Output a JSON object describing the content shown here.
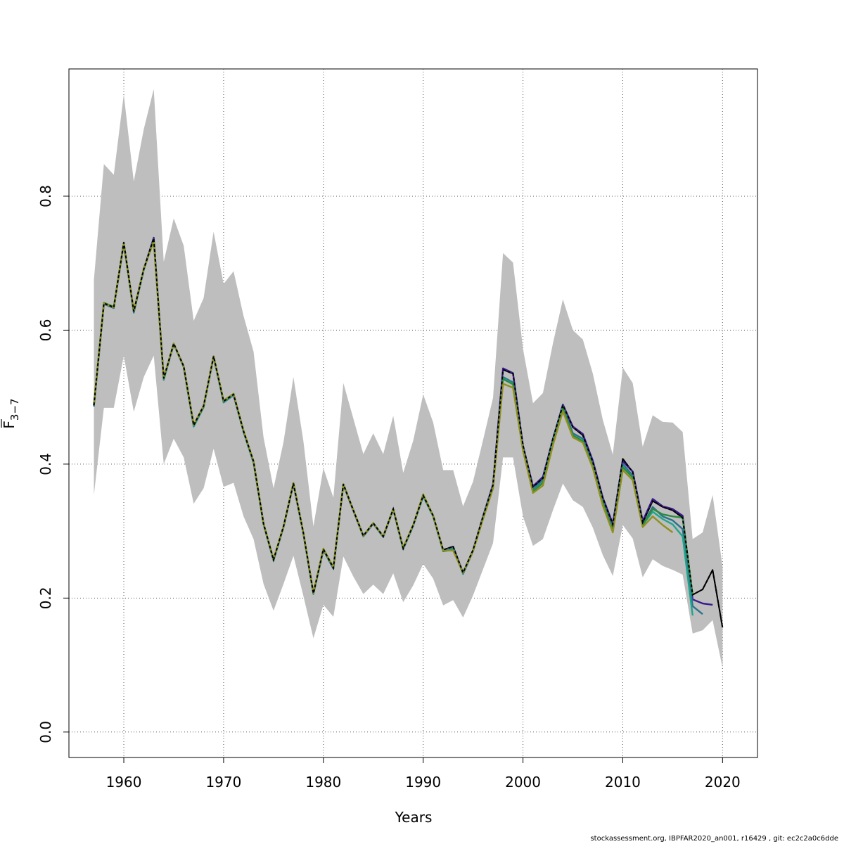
{
  "chart_data": {
    "type": "line",
    "title": "",
    "xlabel": "Years",
    "ylabel_main": "F",
    "ylabel_sub": "3−7",
    "xlim": [
      1954.5,
      2023.5
    ],
    "ylim": [
      -0.038,
      0.99
    ],
    "xticks": [
      1960,
      1970,
      1980,
      1990,
      2000,
      2010,
      2020
    ],
    "yticks": [
      0.0,
      0.2,
      0.4,
      0.6,
      0.8
    ],
    "ytick_labels": [
      "0.0",
      "0.2",
      "0.4",
      "0.6",
      "0.8"
    ],
    "grid": true,
    "legend": "none",
    "band_color": "#bebebe",
    "confidence_band": {
      "x": [
        1957,
        1958,
        1959,
        1960,
        1961,
        1962,
        1963,
        1964,
        1965,
        1966,
        1967,
        1968,
        1969,
        1970,
        1971,
        1972,
        1973,
        1974,
        1975,
        1976,
        1977,
        1978,
        1979,
        1980,
        1981,
        1982,
        1983,
        1984,
        1985,
        1986,
        1987,
        1988,
        1989,
        1990,
        1991,
        1992,
        1993,
        1994,
        1995,
        1996,
        1997,
        1998,
        1999,
        2000,
        2001,
        2002,
        2003,
        2004,
        2005,
        2006,
        2007,
        2008,
        2009,
        2010,
        2011,
        2012,
        2013,
        2014,
        2015,
        2016,
        2017,
        2018,
        2019,
        2020
      ],
      "upper": [
        0.675,
        0.848,
        0.832,
        0.952,
        0.822,
        0.9,
        0.96,
        0.702,
        0.767,
        0.726,
        0.614,
        0.648,
        0.747,
        0.669,
        0.688,
        0.621,
        0.568,
        0.44,
        0.364,
        0.433,
        0.53,
        0.434,
        0.307,
        0.394,
        0.35,
        0.521,
        0.468,
        0.415,
        0.446,
        0.415,
        0.472,
        0.387,
        0.435,
        0.504,
        0.462,
        0.391,
        0.391,
        0.337,
        0.374,
        0.436,
        0.499,
        0.715,
        0.701,
        0.572,
        0.491,
        0.506,
        0.58,
        0.646,
        0.6,
        0.586,
        0.535,
        0.466,
        0.414,
        0.544,
        0.521,
        0.426,
        0.473,
        0.463,
        0.462,
        0.448,
        0.288,
        0.298,
        0.354,
        0.247
      ],
      "lower": [
        0.354,
        0.484,
        0.484,
        0.562,
        0.478,
        0.53,
        0.562,
        0.4,
        0.438,
        0.41,
        0.341,
        0.364,
        0.423,
        0.366,
        0.372,
        0.322,
        0.288,
        0.221,
        0.181,
        0.221,
        0.263,
        0.203,
        0.14,
        0.19,
        0.172,
        0.262,
        0.232,
        0.206,
        0.22,
        0.206,
        0.237,
        0.194,
        0.219,
        0.251,
        0.229,
        0.189,
        0.197,
        0.171,
        0.204,
        0.243,
        0.282,
        0.41,
        0.41,
        0.322,
        0.278,
        0.288,
        0.331,
        0.371,
        0.346,
        0.336,
        0.305,
        0.264,
        0.233,
        0.309,
        0.289,
        0.231,
        0.258,
        0.248,
        0.242,
        0.235,
        0.147,
        0.152,
        0.167,
        0.096
      ]
    },
    "series": [
      {
        "color": "#000000",
        "dashed": true,
        "x": [
          1957,
          1958,
          1959,
          1960,
          1961,
          1962,
          1963,
          1964,
          1965,
          1966,
          1967,
          1968,
          1969,
          1970,
          1971,
          1972,
          1973,
          1974,
          1975,
          1976,
          1977,
          1978,
          1979,
          1980,
          1981,
          1982,
          1983,
          1984,
          1985,
          1986,
          1987,
          1988,
          1989,
          1990,
          1991,
          1992,
          1993,
          1994,
          1995,
          1996,
          1997,
          1998,
          1999,
          2000,
          2001,
          2002,
          2003,
          2004,
          2005,
          2006,
          2007,
          2008,
          2009,
          2010,
          2011,
          2012,
          2013,
          2014,
          2015,
          2016,
          2017,
          2018,
          2019,
          2020
        ],
        "y": [
          0.488,
          0.64,
          0.634,
          0.731,
          0.628,
          0.691,
          0.737,
          0.528,
          0.58,
          0.546,
          0.458,
          0.487,
          0.561,
          0.494,
          0.504,
          0.449,
          0.404,
          0.311,
          0.257,
          0.307,
          0.371,
          0.297,
          0.207,
          0.273,
          0.245,
          0.37,
          0.331,
          0.293,
          0.312,
          0.292,
          0.333,
          0.274,
          0.309,
          0.353,
          0.323,
          0.272,
          0.277,
          0.238,
          0.272,
          0.322,
          0.369,
          0.541,
          0.535,
          0.428,
          0.366,
          0.379,
          0.438,
          0.488,
          0.455,
          0.443,
          0.403,
          0.349,
          0.31,
          0.408,
          0.388,
          0.313,
          0.345,
          0.336,
          0.331,
          0.32,
          0.205,
          0.213,
          0.242,
          0.156
        ]
      },
      {
        "color": "#3b1c8c",
        "dashed": false,
        "x": [
          1957,
          1958,
          1959,
          1960,
          1961,
          1962,
          1963,
          1964,
          1965,
          1966,
          1967,
          1968,
          1969,
          1970,
          1971,
          1972,
          1973,
          1974,
          1975,
          1976,
          1977,
          1978,
          1979,
          1980,
          1981,
          1982,
          1983,
          1984,
          1985,
          1986,
          1987,
          1988,
          1989,
          1990,
          1991,
          1992,
          1993,
          1994,
          1995,
          1996,
          1997,
          1998,
          1999,
          2000,
          2001,
          2002,
          2003,
          2004,
          2005,
          2006,
          2007,
          2008,
          2009,
          2010,
          2011,
          2012,
          2013,
          2014,
          2015,
          2016,
          2017,
          2018,
          2019
        ],
        "y": [
          0.487,
          0.64,
          0.634,
          0.73,
          0.627,
          0.691,
          0.738,
          0.527,
          0.58,
          0.545,
          0.457,
          0.486,
          0.561,
          0.493,
          0.503,
          0.449,
          0.403,
          0.311,
          0.257,
          0.306,
          0.371,
          0.296,
          0.207,
          0.272,
          0.244,
          0.37,
          0.331,
          0.293,
          0.312,
          0.292,
          0.333,
          0.274,
          0.308,
          0.353,
          0.322,
          0.271,
          0.276,
          0.237,
          0.271,
          0.322,
          0.37,
          0.543,
          0.536,
          0.427,
          0.367,
          0.381,
          0.437,
          0.489,
          0.456,
          0.445,
          0.405,
          0.35,
          0.311,
          0.404,
          0.389,
          0.315,
          0.348,
          0.337,
          0.333,
          0.323,
          0.198,
          0.192,
          0.19
        ]
      },
      {
        "color": "#2c728e",
        "dashed": false,
        "x": [
          1957,
          1958,
          1959,
          1960,
          1961,
          1962,
          1963,
          1964,
          1965,
          1966,
          1967,
          1968,
          1969,
          1970,
          1971,
          1972,
          1973,
          1974,
          1975,
          1976,
          1977,
          1978,
          1979,
          1980,
          1981,
          1982,
          1983,
          1984,
          1985,
          1986,
          1987,
          1988,
          1989,
          1990,
          1991,
          1992,
          1993,
          1994,
          1995,
          1996,
          1997,
          1998,
          1999,
          2000,
          2001,
          2002,
          2003,
          2004,
          2005,
          2006,
          2007,
          2008,
          2009,
          2010,
          2011,
          2012,
          2013,
          2014,
          2015,
          2016,
          2017,
          2018
        ],
        "y": [
          0.486,
          0.639,
          0.633,
          0.729,
          0.626,
          0.69,
          0.735,
          0.526,
          0.579,
          0.545,
          0.456,
          0.485,
          0.56,
          0.492,
          0.503,
          0.448,
          0.402,
          0.31,
          0.256,
          0.306,
          0.37,
          0.296,
          0.206,
          0.272,
          0.244,
          0.369,
          0.33,
          0.292,
          0.311,
          0.291,
          0.332,
          0.273,
          0.308,
          0.352,
          0.322,
          0.27,
          0.275,
          0.236,
          0.27,
          0.321,
          0.368,
          0.53,
          0.522,
          0.425,
          0.362,
          0.377,
          0.435,
          0.487,
          0.446,
          0.438,
          0.4,
          0.345,
          0.304,
          0.4,
          0.383,
          0.309,
          0.336,
          0.322,
          0.316,
          0.303,
          0.188,
          0.176
        ]
      },
      {
        "color": "#1ea58e",
        "dashed": false,
        "x": [
          1957,
          1958,
          1959,
          1960,
          1961,
          1962,
          1963,
          1964,
          1965,
          1966,
          1967,
          1968,
          1969,
          1970,
          1971,
          1972,
          1973,
          1974,
          1975,
          1976,
          1977,
          1978,
          1979,
          1980,
          1981,
          1982,
          1983,
          1984,
          1985,
          1986,
          1987,
          1988,
          1989,
          1990,
          1991,
          1992,
          1993,
          1994,
          1995,
          1996,
          1997,
          1998,
          1999,
          2000,
          2001,
          2002,
          2003,
          2004,
          2005,
          2006,
          2007,
          2008,
          2009,
          2010,
          2011,
          2012,
          2013,
          2014,
          2015,
          2016,
          2017
        ],
        "y": [
          0.488,
          0.64,
          0.634,
          0.73,
          0.628,
          0.691,
          0.735,
          0.527,
          0.58,
          0.545,
          0.457,
          0.486,
          0.56,
          0.493,
          0.504,
          0.449,
          0.403,
          0.31,
          0.257,
          0.306,
          0.372,
          0.296,
          0.207,
          0.273,
          0.245,
          0.37,
          0.331,
          0.293,
          0.312,
          0.292,
          0.333,
          0.274,
          0.308,
          0.353,
          0.322,
          0.27,
          0.273,
          0.237,
          0.271,
          0.32,
          0.366,
          0.528,
          0.52,
          0.423,
          0.36,
          0.373,
          0.432,
          0.484,
          0.443,
          0.435,
          0.397,
          0.342,
          0.3,
          0.396,
          0.38,
          0.309,
          0.329,
          0.318,
          0.31,
          0.292,
          0.174
        ]
      },
      {
        "color": "#2e8b3e",
        "dashed": false,
        "x": [
          1957,
          1958,
          1959,
          1960,
          1961,
          1962,
          1963,
          1964,
          1965,
          1966,
          1967,
          1968,
          1969,
          1970,
          1971,
          1972,
          1973,
          1974,
          1975,
          1976,
          1977,
          1978,
          1979,
          1980,
          1981,
          1982,
          1983,
          1984,
          1985,
          1986,
          1987,
          1988,
          1989,
          1990,
          1991,
          1992,
          1993,
          1994,
          1995,
          1996,
          1997,
          1998,
          1999,
          2000,
          2001,
          2002,
          2003,
          2004,
          2005,
          2006,
          2007,
          2008,
          2009,
          2010,
          2011,
          2012,
          2013,
          2014,
          2015,
          2016,
          2017
        ],
        "y": [
          0.489,
          0.641,
          0.635,
          0.73,
          0.628,
          0.691,
          0.734,
          0.528,
          0.58,
          0.546,
          0.458,
          0.486,
          0.561,
          0.494,
          0.505,
          0.449,
          0.404,
          0.311,
          0.258,
          0.306,
          0.372,
          0.297,
          0.207,
          0.273,
          0.246,
          0.37,
          0.331,
          0.293,
          0.312,
          0.292,
          0.333,
          0.275,
          0.309,
          0.354,
          0.323,
          0.27,
          0.272,
          0.238,
          0.271,
          0.32,
          0.366,
          0.527,
          0.519,
          0.423,
          0.359,
          0.372,
          0.431,
          0.483,
          0.443,
          0.434,
          0.396,
          0.342,
          0.301,
          0.395,
          0.38,
          0.309,
          0.333,
          0.325,
          0.322,
          0.32,
          0.205
        ]
      },
      {
        "color": "#8f8f1f",
        "dashed": false,
        "x": [
          1957,
          1958,
          1959,
          1960,
          1961,
          1962,
          1963,
          1964,
          1965,
          1966,
          1967,
          1968,
          1969,
          1970,
          1971,
          1972,
          1973,
          1974,
          1975,
          1976,
          1977,
          1978,
          1979,
          1980,
          1981,
          1982,
          1983,
          1984,
          1985,
          1986,
          1987,
          1988,
          1989,
          1990,
          1991,
          1992,
          1993,
          1994,
          1995,
          1996,
          1997,
          1998,
          1999,
          2000,
          2001,
          2002,
          2003,
          2004,
          2005,
          2006,
          2007,
          2008,
          2009,
          2010,
          2011,
          2012,
          2013,
          2014,
          2015
        ],
        "y": [
          0.489,
          0.64,
          0.634,
          0.73,
          0.629,
          0.692,
          0.732,
          0.529,
          0.58,
          0.546,
          0.459,
          0.487,
          0.561,
          0.495,
          0.505,
          0.45,
          0.404,
          0.311,
          0.258,
          0.307,
          0.372,
          0.297,
          0.208,
          0.274,
          0.246,
          0.37,
          0.331,
          0.293,
          0.312,
          0.292,
          0.333,
          0.275,
          0.309,
          0.355,
          0.323,
          0.271,
          0.271,
          0.238,
          0.27,
          0.318,
          0.364,
          0.52,
          0.514,
          0.42,
          0.357,
          0.368,
          0.428,
          0.479,
          0.44,
          0.432,
          0.394,
          0.338,
          0.298,
          0.391,
          0.376,
          0.306,
          0.322,
          0.309,
          0.298
        ]
      }
    ]
  },
  "footer": {
    "credit": "stockassessment.org, IBPFAR2020_an001, r16429 , git: ec2c2a0c6dde"
  }
}
